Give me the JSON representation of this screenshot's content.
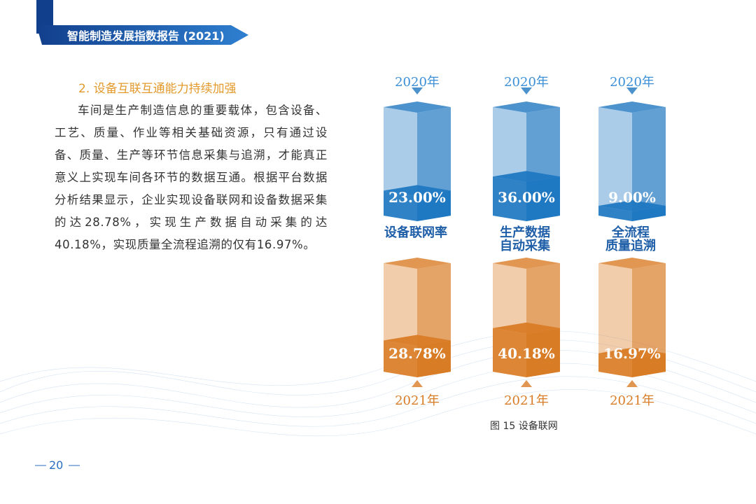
{
  "header": {
    "title": "智能制造发展指数报告 (2021)"
  },
  "section": {
    "heading": "2. 设备互联互通能力持续加强",
    "paragraph": "车间是生产制造信息的重要载体，包含设备、工艺、质量、作业等相关基础资源，只有通过设备、质量、生产等环节信息采集与追溯，才能真正意义上实现车间各环节的数据互通。根据平台数据分析结果显示，企业实现设备联网和设备数据采集的达28.78%，实现生产数据自动采集的达40.18%，实现质量全流程追溯的仅有16.97%。"
  },
  "chart_data": {
    "type": "bar3d",
    "categories": [
      "设备联网率",
      "生产数据\n自动采集",
      "全流程\n质量追溯"
    ],
    "series": [
      {
        "name": "2020年",
        "color": "#1f78c2",
        "values": [
          23,
          36,
          9
        ],
        "value_labels": [
          "23.00%",
          "36.00%",
          "9.00%"
        ]
      },
      {
        "name": "2021年",
        "color": "#d97c26",
        "values": [
          28.78,
          40.18,
          16.97
        ],
        "value_labels": [
          "28.78%",
          "40.18%",
          "16.97%"
        ]
      }
    ],
    "ylim": [
      0,
      100
    ],
    "caption": "图 15 设备联网"
  },
  "footer": {
    "page": "20"
  }
}
